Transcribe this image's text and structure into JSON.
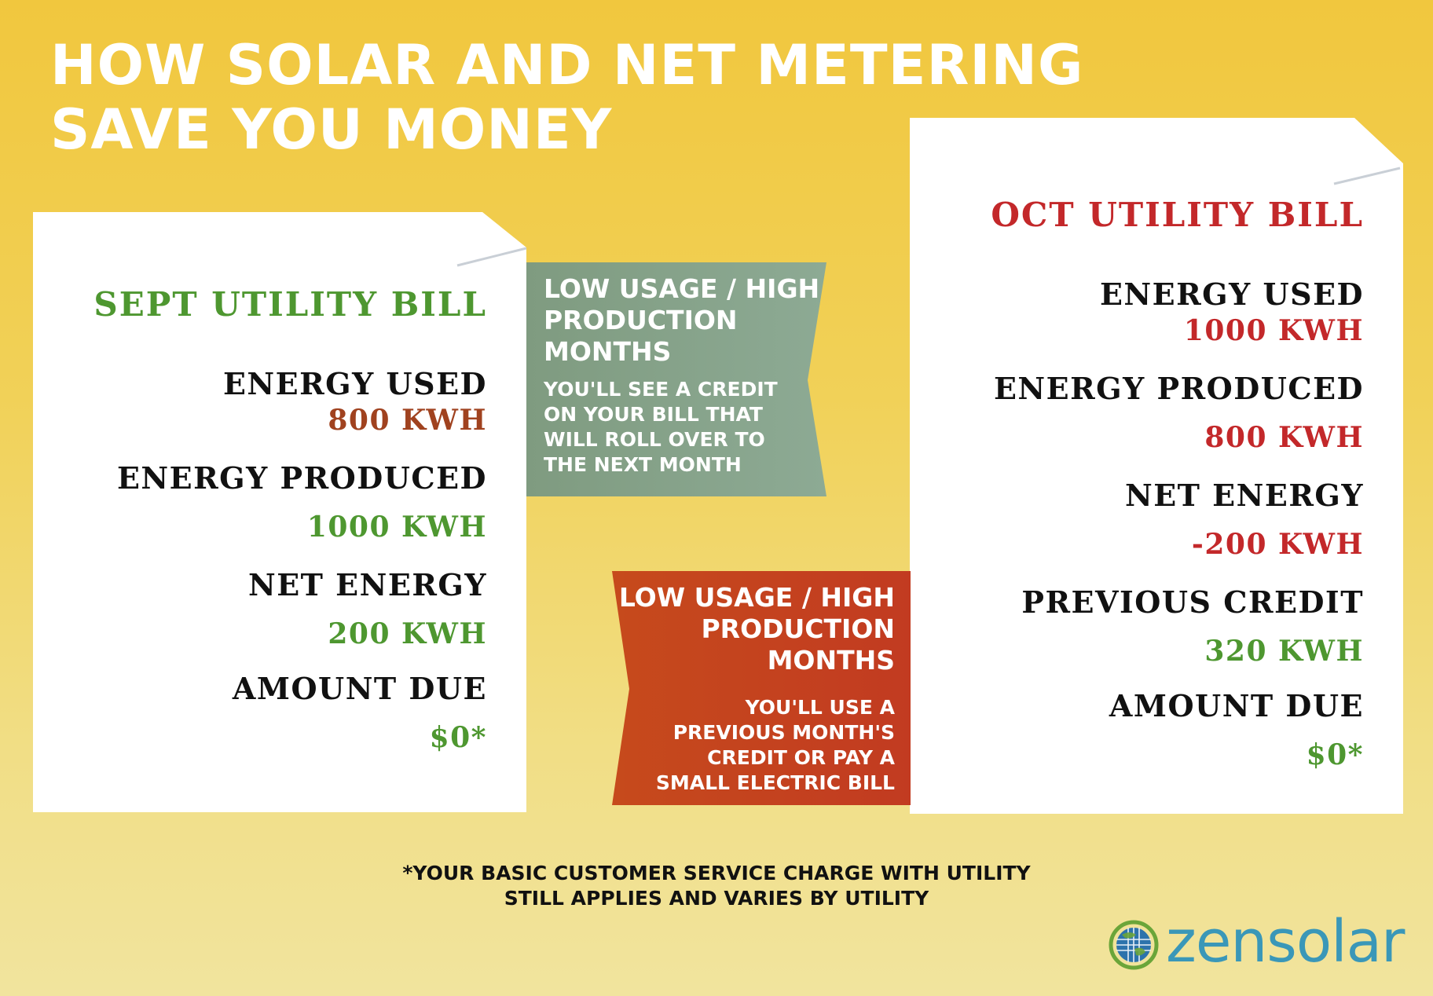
{
  "title": {
    "line1": "HOW SOLAR AND NET METERING",
    "line2": "SAVE YOU MONEY"
  },
  "sept_bill": {
    "heading": "SEPT UTILITY BILL",
    "energy_used_label": "ENERGY USED",
    "energy_used_value": "800 KWH",
    "energy_produced_label": "ENERGY PRODUCED",
    "energy_produced_value": "1000 KWH",
    "net_energy_label": "NET ENERGY",
    "net_energy_value": "200 KWH",
    "amount_due_label": "AMOUNT DUE",
    "amount_due_value": "$0*"
  },
  "oct_bill": {
    "heading": "OCT UTILITY BILL",
    "energy_used_label": "ENERGY USED",
    "energy_used_value": "1000 KWH",
    "energy_produced_label": "ENERGY PRODUCED",
    "energy_produced_value": "800 KWH",
    "net_energy_label": "NET ENERGY",
    "net_energy_value": "-200 KWH",
    "previous_credit_label": "PREVIOUS CREDIT",
    "previous_credit_value": "320 KWH",
    "amount_due_label": "AMOUNT DUE",
    "amount_due_value": "$0*"
  },
  "banner_green": {
    "heading": [
      "LOW USAGE / HIGH",
      "PRODUCTION",
      "MONTHS"
    ],
    "body": [
      "YOU'LL SEE A CREDIT",
      "ON YOUR BILL THAT",
      "WILL ROLL OVER TO",
      "THE NEXT MONTH"
    ]
  },
  "banner_red": {
    "heading": [
      "LOW USAGE / HIGH",
      "PRODUCTION",
      "MONTHS"
    ],
    "body": [
      "YOU'LL USE A",
      "PREVIOUS MONTH'S",
      "CREDIT OR PAY A",
      "SMALL ELECTRIC BILL"
    ]
  },
  "footnote": {
    "line1": "*YOUR BASIC CUSTOMER SERVICE CHARGE WITH UTILITY",
    "line2": "STILL APPLIES AND VARIES BY UTILITY"
  },
  "logo": {
    "text": "zensolar",
    "icon": "globe-solar-icon"
  },
  "colors": {
    "green_text": "#4E9730",
    "brown_text": "#A0421F",
    "red_text": "#C3282A",
    "green_banner": "#849F88",
    "red_banner": "#C3401F",
    "logo_blue": "#3A97B8"
  }
}
